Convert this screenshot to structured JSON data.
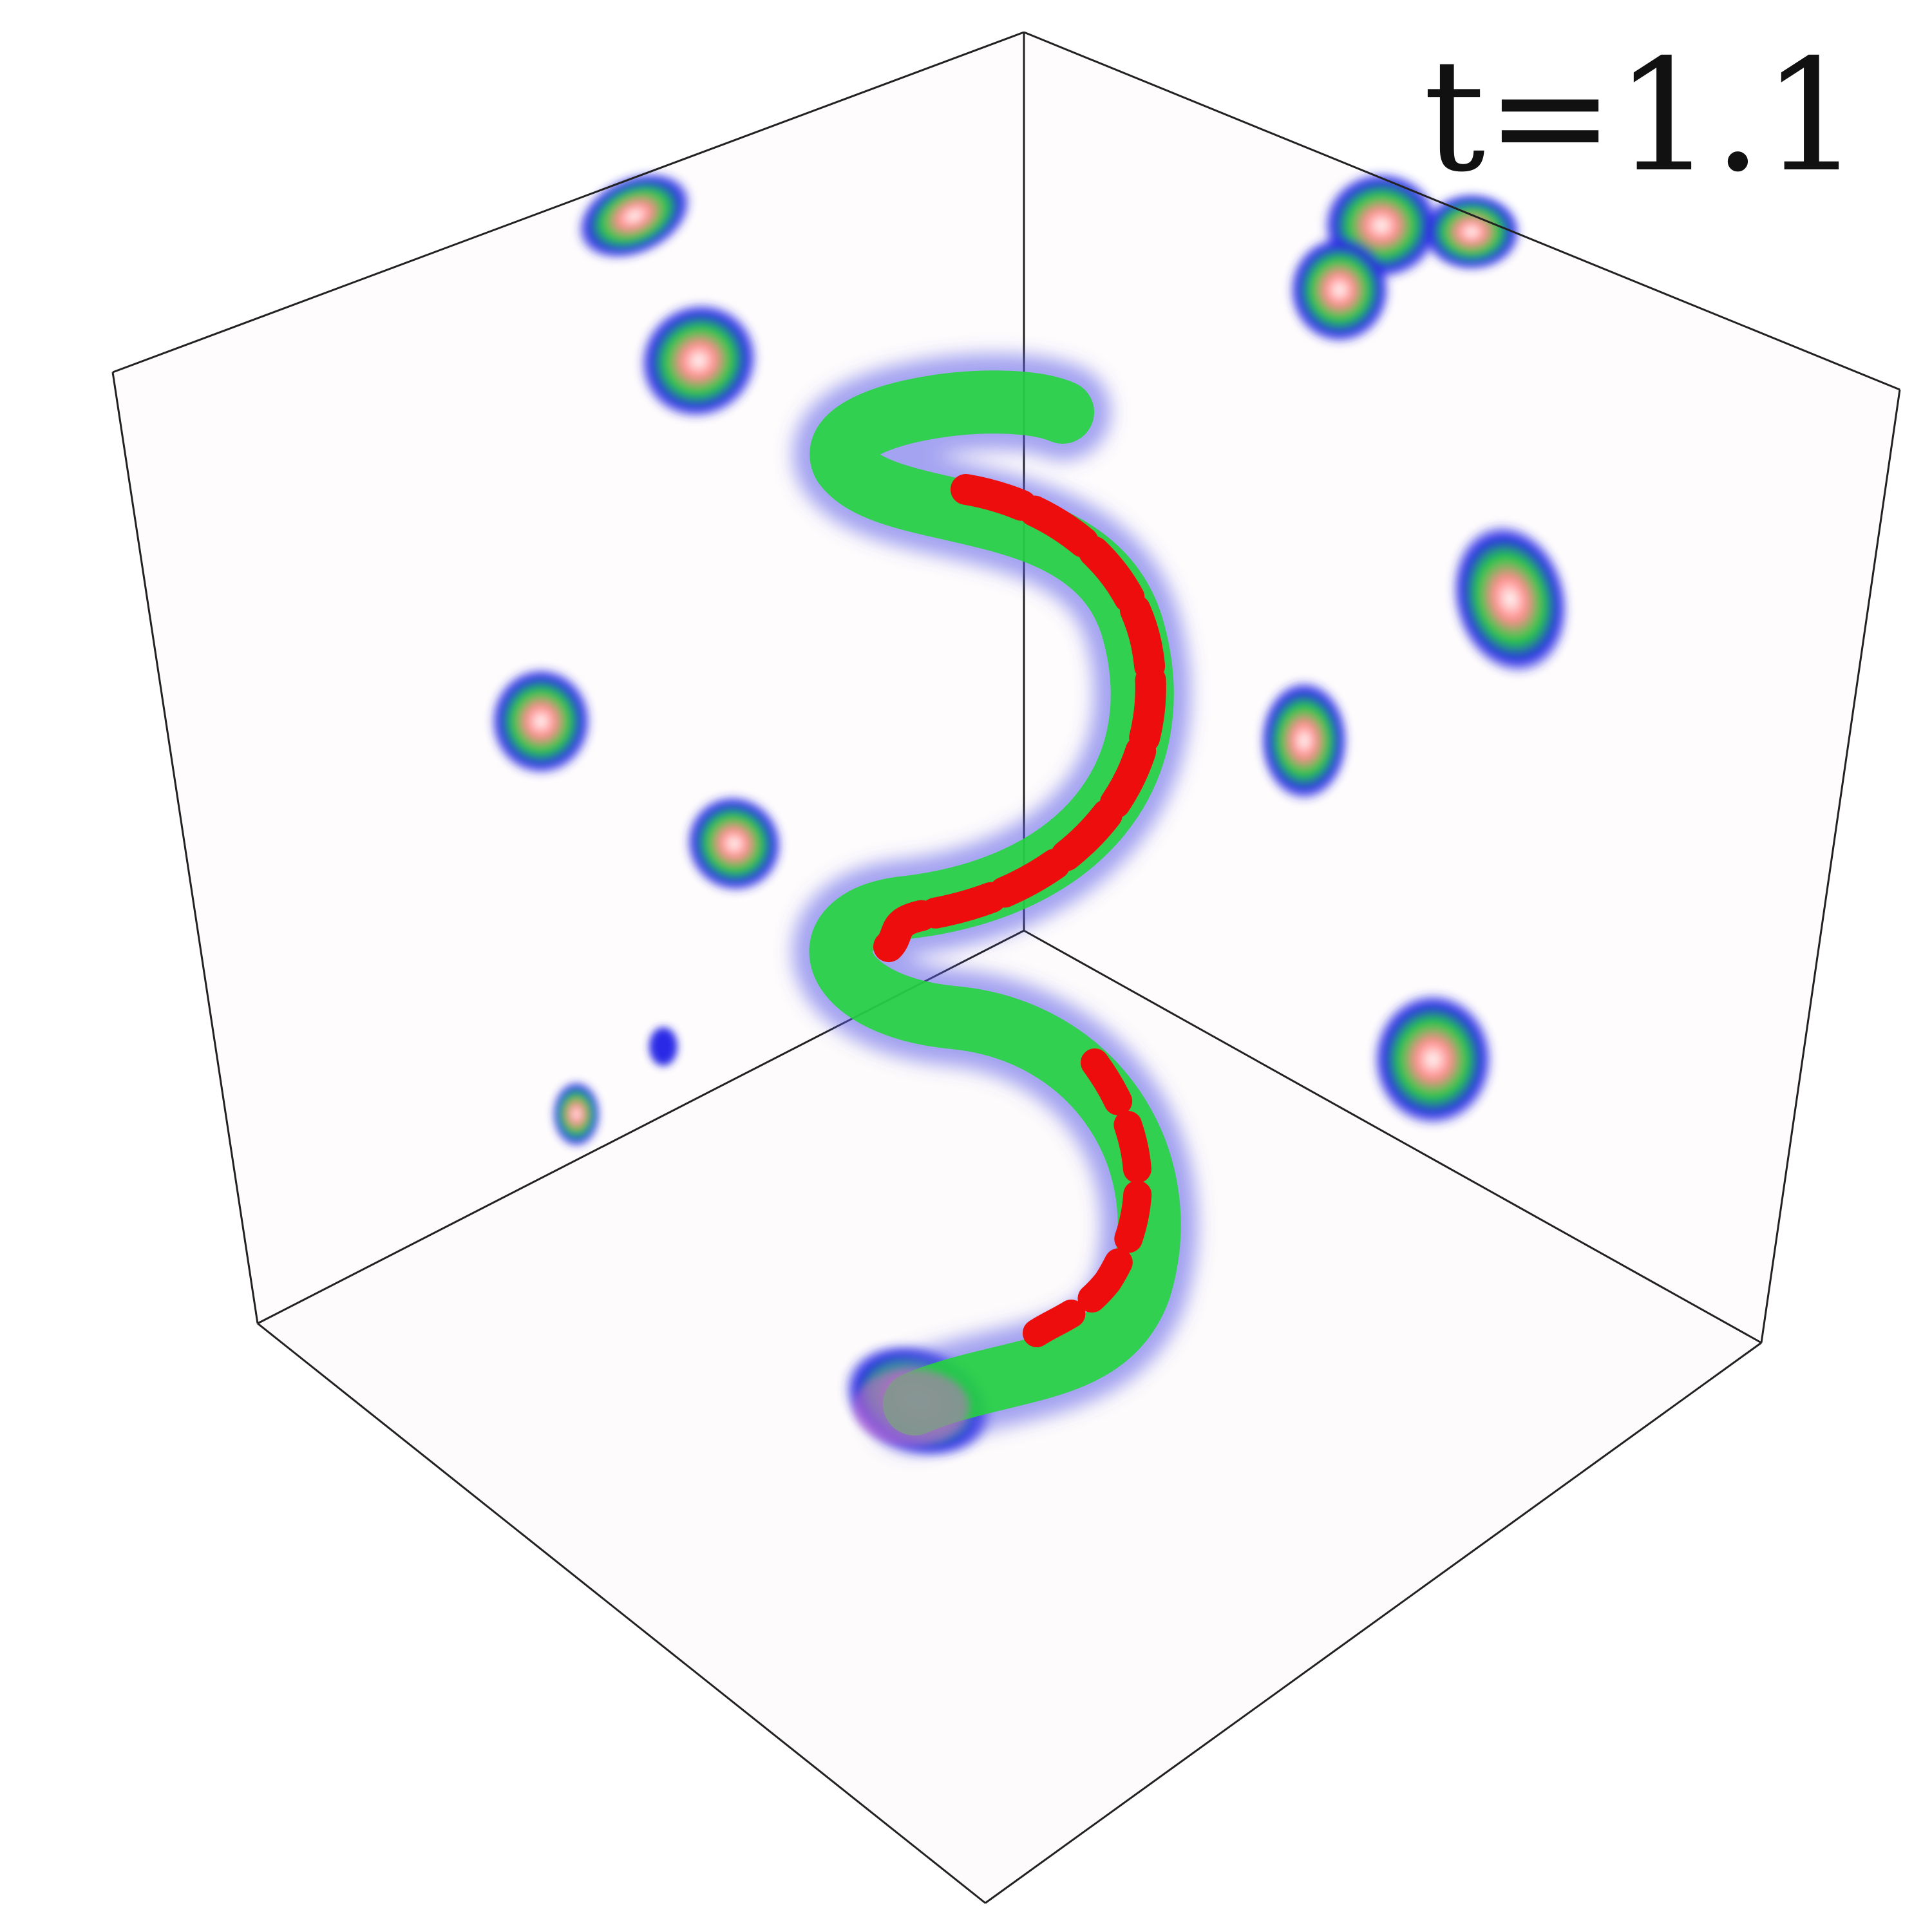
{
  "annotation": {
    "time_label": "t=1.1"
  },
  "scene": {
    "kind": "3d-volume-rendering-with-wall-projections",
    "isosurface_colors": {
      "outer": "#5a5ae8",
      "middle": "#22d63a",
      "inner": "#ee0d0d"
    },
    "projection_colors": [
      "#2222ee",
      "#22cc44",
      "#ff8888",
      "#ffffff"
    ],
    "box_edge_color": "#222222",
    "panel_background": "#fdfbfb"
  }
}
